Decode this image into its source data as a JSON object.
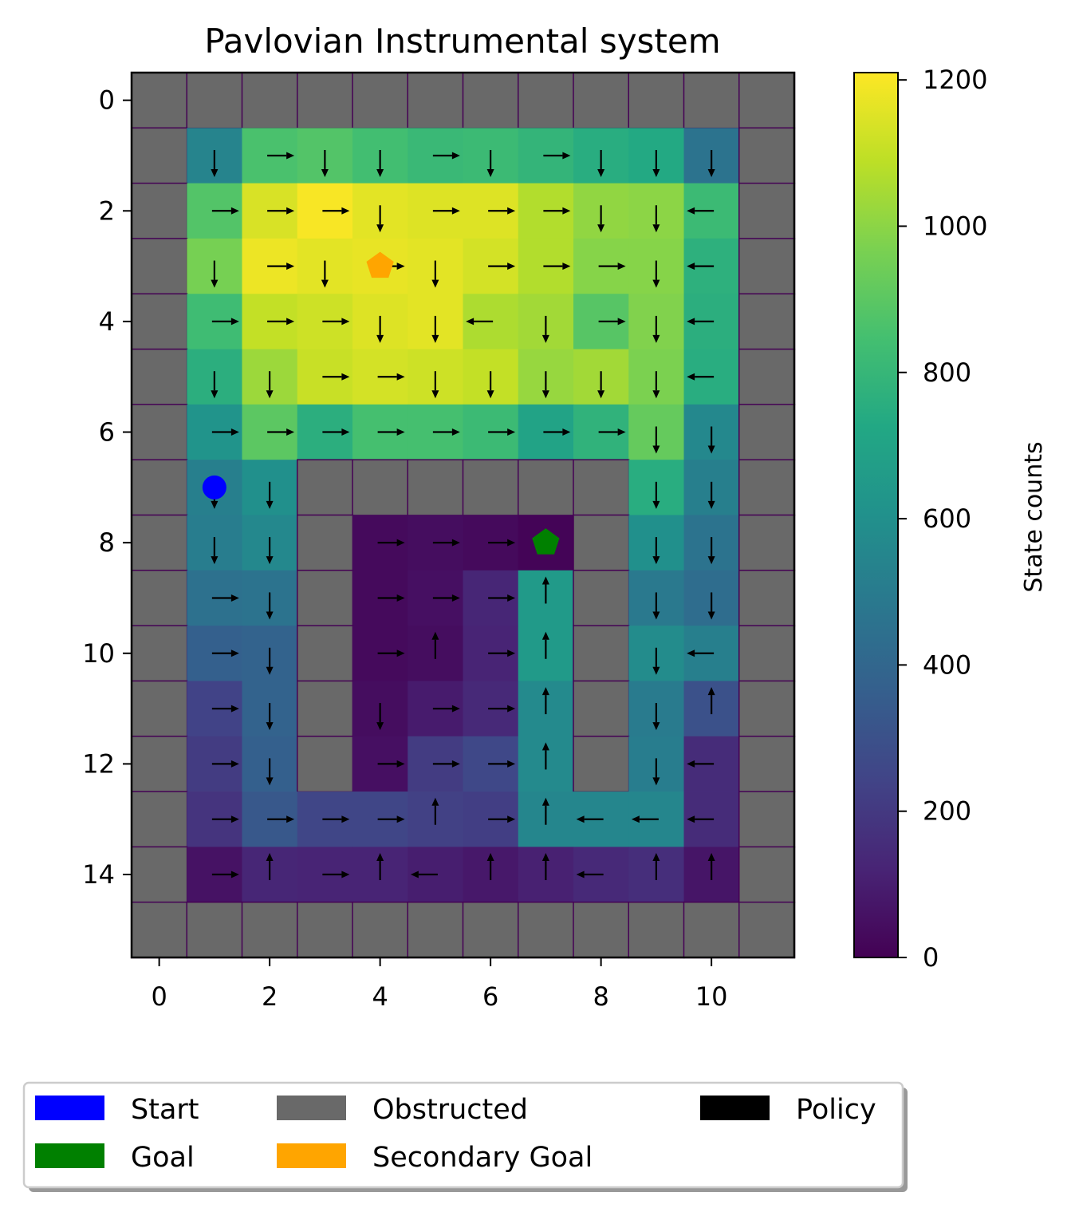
{
  "chart_data": {
    "type": "heatmap",
    "title": "Pavlovian Instrumental system",
    "xlabel": "",
    "ylabel": "",
    "x_ticks": [
      "0",
      "2",
      "4",
      "6",
      "8",
      "10"
    ],
    "y_ticks": [
      "0",
      "2",
      "4",
      "6",
      "8",
      "10",
      "12",
      "14"
    ],
    "xlim": [
      -0.5,
      11.5
    ],
    "ylim": [
      15.5,
      -0.5
    ],
    "grid_shape": [
      16,
      12
    ],
    "colorbar": {
      "label": "State counts",
      "colormap": "viridis",
      "range": [
        0,
        1210
      ],
      "ticks": [
        "0",
        "200",
        "400",
        "600",
        "800",
        "1000",
        "1200"
      ]
    },
    "obstructed_color": "#696969",
    "counts": [
      [
        null,
        null,
        null,
        null,
        null,
        null,
        null,
        null,
        null,
        null,
        null,
        null
      ],
      [
        null,
        540,
        860,
        880,
        840,
        810,
        820,
        790,
        750,
        730,
        460,
        null
      ],
      [
        null,
        880,
        1140,
        1200,
        1160,
        1150,
        1150,
        1070,
        1010,
        1000,
        820,
        null
      ],
      [
        null,
        960,
        1180,
        1160,
        1170,
        1160,
        1130,
        1070,
        990,
        990,
        770,
        null
      ],
      [
        null,
        830,
        1100,
        1120,
        1150,
        1160,
        1060,
        1040,
        890,
        980,
        760,
        null
      ],
      [
        null,
        760,
        1030,
        1110,
        1130,
        1120,
        1100,
        1020,
        1040,
        970,
        750,
        null
      ],
      [
        null,
        620,
        900,
        760,
        850,
        850,
        820,
        700,
        780,
        920,
        560,
        null
      ],
      [
        null,
        520,
        600,
        null,
        null,
        null,
        null,
        null,
        null,
        750,
        520,
        null
      ],
      [
        null,
        510,
        560,
        null,
        30,
        40,
        30,
        10,
        null,
        600,
        460,
        null
      ],
      [
        null,
        450,
        460,
        null,
        30,
        50,
        130,
        650,
        null,
        490,
        430,
        null
      ],
      [
        null,
        370,
        380,
        null,
        30,
        40,
        120,
        650,
        null,
        580,
        520,
        null
      ],
      [
        null,
        240,
        380,
        null,
        40,
        90,
        140,
        570,
        null,
        500,
        300,
        null
      ],
      [
        null,
        210,
        370,
        null,
        50,
        210,
        260,
        570,
        null,
        510,
        150,
        null
      ],
      [
        null,
        180,
        330,
        250,
        250,
        230,
        220,
        550,
        550,
        550,
        150,
        null
      ],
      [
        null,
        60,
        130,
        120,
        120,
        100,
        80,
        110,
        140,
        160,
        70,
        null
      ],
      [
        null,
        null,
        null,
        null,
        null,
        null,
        null,
        null,
        null,
        null,
        null,
        null
      ]
    ],
    "policy": [
      [
        "",
        "",
        "",
        "",
        "",
        "",
        "",
        "",
        "",
        "",
        "",
        ""
      ],
      [
        "",
        "down",
        "right",
        "down",
        "down",
        "right",
        "down",
        "right",
        "down",
        "down",
        "down",
        ""
      ],
      [
        "",
        "right",
        "right",
        "right",
        "down",
        "right",
        "right",
        "right",
        "down",
        "down",
        "left",
        ""
      ],
      [
        "",
        "down",
        "right",
        "down",
        "right",
        "down",
        "right",
        "right",
        "right",
        "down",
        "left",
        ""
      ],
      [
        "",
        "right",
        "right",
        "right",
        "down",
        "down",
        "left",
        "down",
        "right",
        "down",
        "left",
        ""
      ],
      [
        "",
        "down",
        "down",
        "right",
        "right",
        "down",
        "down",
        "down",
        "down",
        "down",
        "left",
        ""
      ],
      [
        "",
        "right",
        "right",
        "right",
        "right",
        "right",
        "right",
        "right",
        "right",
        "down",
        "down",
        ""
      ],
      [
        "",
        "down",
        "down",
        "",
        "",
        "",
        "",
        "",
        "",
        "down",
        "down",
        ""
      ],
      [
        "",
        "down",
        "down",
        "",
        "right",
        "right",
        "right",
        "",
        "",
        "down",
        "down",
        ""
      ],
      [
        "",
        "right",
        "down",
        "",
        "right",
        "right",
        "right",
        "up",
        "",
        "down",
        "down",
        ""
      ],
      [
        "",
        "right",
        "down",
        "",
        "right",
        "up",
        "right",
        "up",
        "",
        "down",
        "left",
        ""
      ],
      [
        "",
        "right",
        "down",
        "",
        "down",
        "right",
        "right",
        "up",
        "",
        "down",
        "up",
        ""
      ],
      [
        "",
        "right",
        "down",
        "",
        "right",
        "right",
        "right",
        "up",
        "",
        "down",
        "left",
        ""
      ],
      [
        "",
        "right",
        "right",
        "right",
        "right",
        "up",
        "right",
        "up",
        "left",
        "left",
        "left",
        ""
      ],
      [
        "",
        "right",
        "up",
        "right",
        "up",
        "left",
        "up",
        "up",
        "left",
        "up",
        "up",
        ""
      ],
      [
        "",
        "",
        "",
        "",
        "",
        "",
        "",
        "",
        "",
        "",
        "",
        ""
      ]
    ],
    "markers": {
      "start": {
        "x": 1,
        "y": 7,
        "shape": "circle",
        "color": "#0000ff"
      },
      "goal": {
        "x": 7,
        "y": 8,
        "shape": "pentagon",
        "color": "#008000"
      },
      "secondary_goal": {
        "x": 4,
        "y": 3,
        "shape": "pentagon",
        "color": "#ffa500"
      }
    },
    "legend": {
      "placement": "bottom",
      "entries": [
        {
          "label": "Start",
          "color": "#0000ff"
        },
        {
          "label": "Obstructed",
          "color": "#696969"
        },
        {
          "label": "Policy",
          "color": "#000000"
        },
        {
          "label": "Goal",
          "color": "#008000"
        },
        {
          "label": "Secondary Goal",
          "color": "#ffa500"
        }
      ]
    }
  }
}
